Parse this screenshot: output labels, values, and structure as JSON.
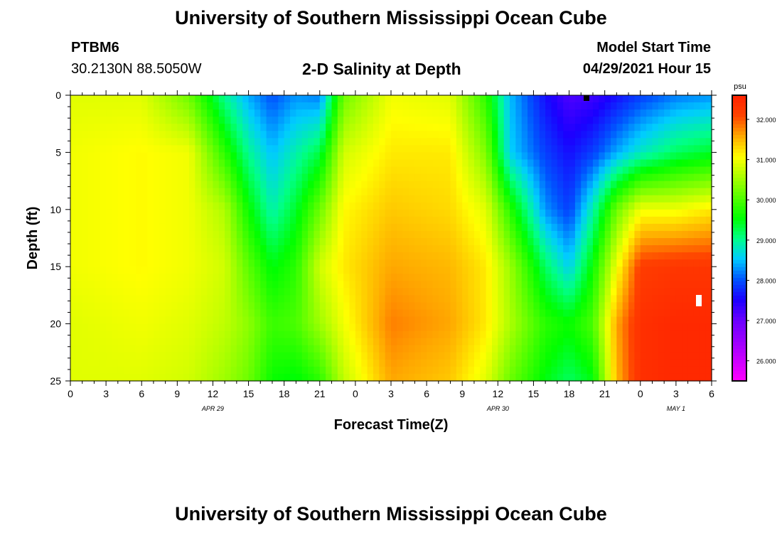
{
  "header": {
    "title": "University of Southern Mississippi Ocean Cube",
    "station": "PTBM6",
    "coordinates": "30.2130N  88.5050W",
    "subtitle": "2-D Salinity at Depth",
    "model_start_label": "Model Start Time",
    "model_start_time": "04/29/2021 Hour 15"
  },
  "footer": {
    "title": "University of Southern Mississippi Ocean Cube"
  },
  "chart_data": {
    "type": "heatmap",
    "title": "2-D Salinity at Depth",
    "xlabel": "Forecast Time(Z)",
    "ylabel": "Depth (ft)",
    "x_tick_labels": [
      "0",
      "3",
      "6",
      "9",
      "12",
      "15",
      "18",
      "21",
      "0",
      "3",
      "6",
      "9",
      "12",
      "15",
      "18",
      "21",
      "0",
      "3",
      "6"
    ],
    "date_labels": [
      {
        "label": "APR 29",
        "at_tick": 4
      },
      {
        "label": "APR 30",
        "at_tick": 12
      },
      {
        "label": "MAY 1",
        "at_tick": 17
      }
    ],
    "y_ticks": [
      0,
      5,
      10,
      15,
      20,
      25
    ],
    "ylim": [
      0,
      25
    ],
    "x_range_hours": [
      0,
      54
    ],
    "colorbar": {
      "unit": "psu",
      "range": [
        25.5,
        32.6
      ],
      "tick_labels": [
        "26.000",
        "27.000",
        "28.000",
        "29.000",
        "30.000",
        "31.000",
        "32.000"
      ],
      "tick_values": [
        26,
        27,
        28,
        29,
        30,
        31,
        32
      ],
      "colors": [
        "#ff00ff",
        "#cc00ff",
        "#9900ff",
        "#6a00ff",
        "#1a00ff",
        "#0055ff",
        "#00ccff",
        "#00ff88",
        "#00ff00",
        "#55ff00",
        "#aaff00",
        "#ffff00",
        "#ffaa00",
        "#ff4400",
        "#ff2200"
      ]
    },
    "approx_values_columns": {
      "depths_ft": [
        0,
        5,
        10,
        15,
        20,
        25
      ],
      "profiles": [
        {
          "hour": 0,
          "values": [
            30.9,
            31.0,
            31.0,
            31.0,
            30.9,
            30.9
          ]
        },
        {
          "hour": 6,
          "values": [
            30.9,
            31.1,
            31.1,
            31.1,
            31.0,
            30.9
          ]
        },
        {
          "hour": 10,
          "values": [
            30.2,
            31.0,
            31.0,
            31.0,
            30.9,
            30.8
          ]
        },
        {
          "hour": 13,
          "values": [
            29.0,
            29.8,
            30.6,
            30.8,
            30.7,
            30.5
          ]
        },
        {
          "hour": 15,
          "values": [
            28.4,
            29.0,
            29.6,
            30.1,
            30.4,
            30.2
          ]
        },
        {
          "hour": 17,
          "values": [
            28.0,
            28.5,
            28.9,
            29.5,
            29.9,
            29.6
          ]
        },
        {
          "hour": 19,
          "values": [
            28.3,
            28.9,
            29.4,
            29.8,
            30.0,
            29.5
          ]
        },
        {
          "hour": 21,
          "values": [
            28.2,
            29.3,
            30.2,
            30.8,
            30.5,
            29.8
          ]
        },
        {
          "hour": 23,
          "values": [
            30.2,
            30.8,
            31.1,
            31.2,
            31.0,
            30.7
          ]
        },
        {
          "hour": 27,
          "values": [
            31.0,
            31.2,
            31.4,
            31.6,
            31.8,
            31.6
          ]
        },
        {
          "hour": 32,
          "values": [
            30.9,
            31.2,
            31.3,
            31.5,
            31.6,
            31.4
          ]
        },
        {
          "hour": 35,
          "values": [
            29.8,
            30.3,
            30.9,
            31.2,
            31.2,
            30.9
          ]
        },
        {
          "hour": 37,
          "values": [
            28.5,
            28.6,
            29.8,
            30.5,
            30.6,
            30.2
          ]
        },
        {
          "hour": 40,
          "values": [
            27.6,
            27.9,
            28.3,
            29.2,
            29.8,
            29.5
          ]
        },
        {
          "hour": 42,
          "values": [
            27.2,
            27.6,
            27.9,
            28.6,
            29.6,
            29.2
          ]
        },
        {
          "hour": 44,
          "values": [
            27.3,
            27.9,
            28.9,
            29.6,
            30.0,
            29.5
          ]
        },
        {
          "hour": 46,
          "values": [
            27.6,
            28.4,
            30.2,
            31.0,
            31.6,
            31.5
          ]
        },
        {
          "hour": 48,
          "values": [
            27.9,
            28.8,
            31.0,
            32.2,
            32.4,
            32.4
          ]
        },
        {
          "hour": 51,
          "values": [
            28.2,
            29.2,
            31.0,
            32.3,
            32.5,
            32.5
          ]
        },
        {
          "hour": 54,
          "values": [
            28.3,
            29.4,
            31.2,
            32.3,
            32.5,
            32.5
          ]
        }
      ]
    }
  }
}
